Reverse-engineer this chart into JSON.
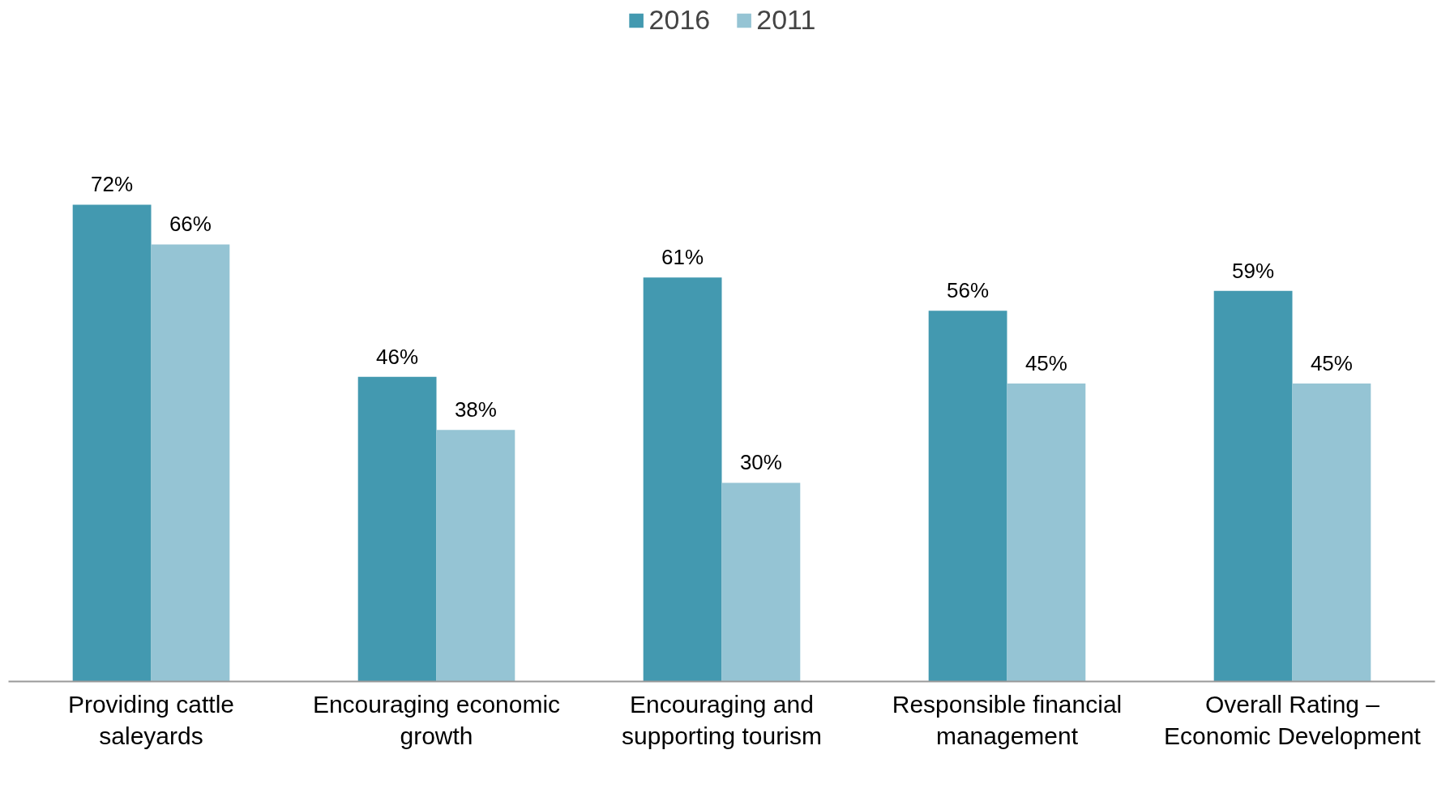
{
  "chart_data": {
    "type": "bar",
    "categories": [
      "Providing cattle saleyards",
      "Encouraging economic growth",
      "Encouraging and supporting tourism",
      "Responsible financial management",
      "Overall Rating – Economic Development"
    ],
    "series": [
      {
        "name": "2016",
        "color": "#4399b0",
        "values": [
          72,
          46,
          61,
          56,
          59
        ],
        "value_labels": [
          "72%",
          "46%",
          "61%",
          "56%",
          "59%"
        ]
      },
      {
        "name": "2011",
        "color": "#95c4d4",
        "values": [
          66,
          38,
          30,
          45,
          45
        ],
        "value_labels": [
          "66%",
          "38%",
          "30%",
          "45%",
          "45%"
        ]
      }
    ],
    "legend": "top",
    "grid": false
  }
}
